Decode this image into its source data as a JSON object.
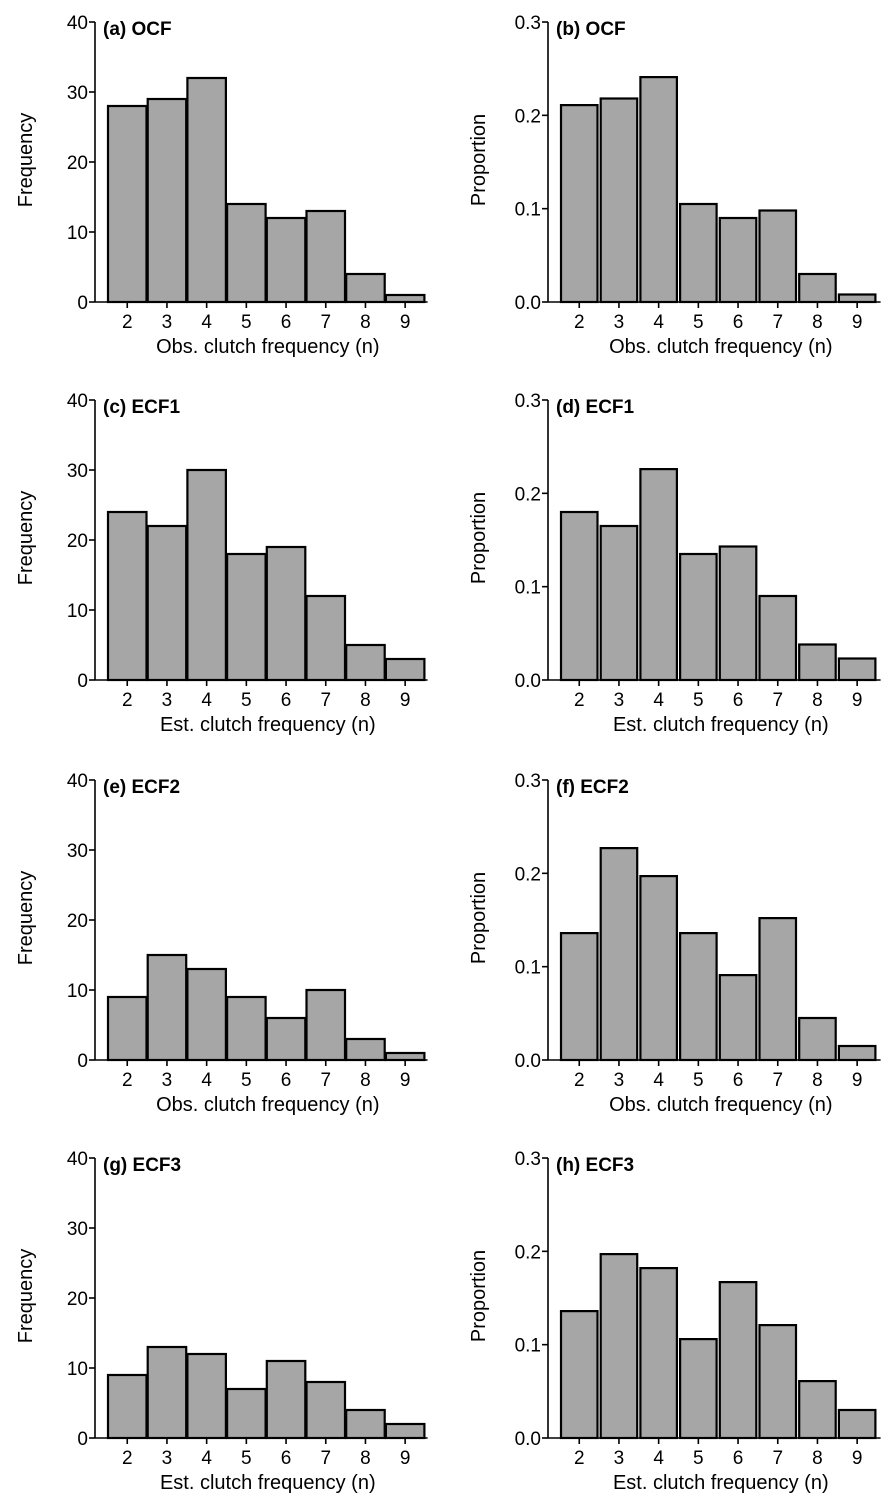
{
  "style": {
    "bar_fill": "#a6a6a6",
    "bar_edge": "#000000",
    "background": "#ffffff"
  },
  "chart_data": [
    {
      "type": "bar",
      "title": "(a) OCF",
      "categories": [
        "2",
        "3",
        "4",
        "5",
        "6",
        "7",
        "8",
        "9"
      ],
      "values": [
        28,
        29,
        32,
        14,
        12,
        13,
        4,
        1
      ],
      "xlabel": "Obs. clutch frequency (n)",
      "ylabel": "Frequency",
      "ylim": [
        0,
        40
      ],
      "yticks": [
        "0",
        "10",
        "20",
        "30",
        "40"
      ],
      "grid": false
    },
    {
      "type": "bar",
      "title": "(b) OCF",
      "categories": [
        "2",
        "3",
        "4",
        "5",
        "6",
        "7",
        "8",
        "9"
      ],
      "values": [
        0.211,
        0.218,
        0.241,
        0.105,
        0.09,
        0.098,
        0.03,
        0.008
      ],
      "xlabel": "Obs. clutch frequency (n)",
      "ylabel": "Proportion",
      "ylim": [
        0,
        0.3
      ],
      "yticks": [
        "0.0",
        "0.1",
        "0.2",
        "0.3"
      ],
      "grid": false
    },
    {
      "type": "bar",
      "title": "(c) ECF1",
      "categories": [
        "2",
        "3",
        "4",
        "5",
        "6",
        "7",
        "8",
        "9"
      ],
      "values": [
        24,
        22,
        30,
        18,
        19,
        12,
        5,
        3
      ],
      "xlabel": "Est. clutch frequency (n)",
      "ylabel": "Frequency",
      "ylim": [
        0,
        40
      ],
      "yticks": [
        "0",
        "10",
        "20",
        "30",
        "40"
      ],
      "grid": false
    },
    {
      "type": "bar",
      "title": "(d) ECF1",
      "categories": [
        "2",
        "3",
        "4",
        "5",
        "6",
        "7",
        "8",
        "9"
      ],
      "values": [
        0.18,
        0.165,
        0.226,
        0.135,
        0.143,
        0.09,
        0.038,
        0.023
      ],
      "xlabel": "Est. clutch frequency (n)",
      "ylabel": "Proportion",
      "ylim": [
        0,
        0.3
      ],
      "yticks": [
        "0.0",
        "0.1",
        "0.2",
        "0.3"
      ],
      "grid": false
    },
    {
      "type": "bar",
      "title": "(e) ECF2",
      "categories": [
        "2",
        "3",
        "4",
        "5",
        "6",
        "7",
        "8",
        "9"
      ],
      "values": [
        9,
        15,
        13,
        9,
        6,
        10,
        3,
        1
      ],
      "xlabel": "Obs. clutch frequency (n)",
      "ylabel": "Frequency",
      "ylim": [
        0,
        40
      ],
      "yticks": [
        "0",
        "10",
        "20",
        "30",
        "40"
      ],
      "grid": false
    },
    {
      "type": "bar",
      "title": "(f) ECF2",
      "categories": [
        "2",
        "3",
        "4",
        "5",
        "6",
        "7",
        "8",
        "9"
      ],
      "values": [
        0.136,
        0.227,
        0.197,
        0.136,
        0.091,
        0.152,
        0.045,
        0.015
      ],
      "xlabel": "Obs. clutch frequency (n)",
      "ylabel": "Proportion",
      "ylim": [
        0,
        0.3
      ],
      "yticks": [
        "0.0",
        "0.1",
        "0.2",
        "0.3"
      ],
      "grid": false
    },
    {
      "type": "bar",
      "title": "(g) ECF3",
      "categories": [
        "2",
        "3",
        "4",
        "5",
        "6",
        "7",
        "8",
        "9"
      ],
      "values": [
        9,
        13,
        12,
        7,
        11,
        8,
        4,
        2
      ],
      "xlabel": "Est. clutch frequency (n)",
      "ylabel": "Frequency",
      "ylim": [
        0,
        40
      ],
      "yticks": [
        "0",
        "10",
        "20",
        "30",
        "40"
      ],
      "grid": false
    },
    {
      "type": "bar",
      "title": "(h) ECF3",
      "categories": [
        "2",
        "3",
        "4",
        "5",
        "6",
        "7",
        "8",
        "9"
      ],
      "values": [
        0.136,
        0.197,
        0.182,
        0.106,
        0.167,
        0.121,
        0.061,
        0.03
      ],
      "xlabel": "Est. clutch frequency (n)",
      "ylabel": "Proportion",
      "ylim": [
        0,
        0.3
      ],
      "yticks": [
        "0.0",
        "0.1",
        "0.2",
        "0.3"
      ],
      "grid": false
    }
  ]
}
